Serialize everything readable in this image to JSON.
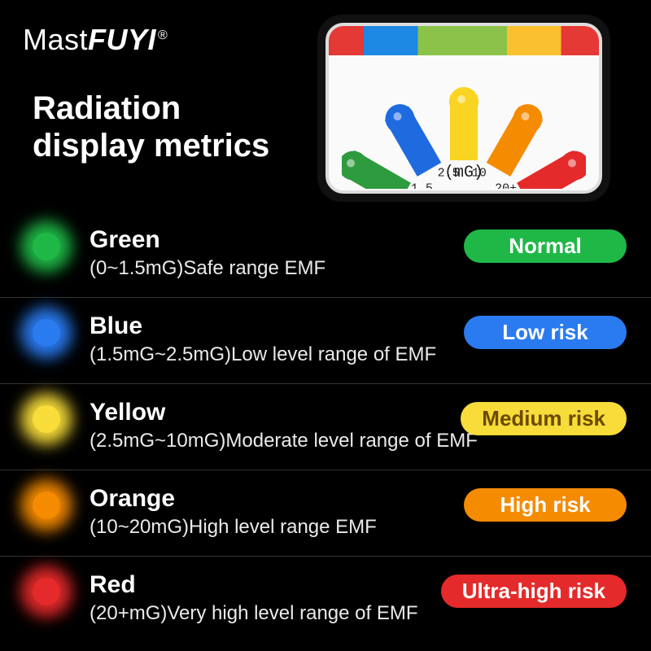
{
  "brand": {
    "part1": "Mast",
    "part2": "FUYI",
    "reg": "®"
  },
  "title_line1": "Radiation",
  "title_line2": "display metrics",
  "meter": {
    "unit": "(mG)",
    "ticks": [
      "1.5",
      "2.5",
      "10",
      "20+"
    ],
    "bars": [
      {
        "color": "#2e9b3f"
      },
      {
        "color": "#1e6be0"
      },
      {
        "color": "#f9d423"
      },
      {
        "color": "#f58b00"
      },
      {
        "color": "#e42a2a"
      }
    ],
    "topbar_colors": [
      "#e53935",
      "#1e88e5",
      "#8bc34a",
      "#fbc02d",
      "#e53935"
    ]
  },
  "levels": [
    {
      "name": "Green",
      "dot_color": "#1fb847",
      "desc": "(0~1.5mG)Safe range EMF",
      "badge": "Normal",
      "badge_bg": "#1fb847",
      "badge_color": "#ffffff"
    },
    {
      "name": "Blue",
      "dot_color": "#2a7bf0",
      "desc": "(1.5mG~2.5mG)Low level range of EMF",
      "badge": "Low risk",
      "badge_bg": "#2a7bf0",
      "badge_color": "#ffffff"
    },
    {
      "name": "Yellow",
      "dot_color": "#f7dc3a",
      "desc": "(2.5mG~10mG)Moderate level range of EMF",
      "badge": "Medium risk",
      "badge_bg": "#f7dc3a",
      "badge_color": "#6b4a00"
    },
    {
      "name": "Orange",
      "dot_color": "#f58b00",
      "desc": "(10~20mG)High level range EMF",
      "badge": "High risk",
      "badge_bg": "#f58b00",
      "badge_color": "#ffffff"
    },
    {
      "name": "Red",
      "dot_color": "#e42a2a",
      "desc": "(20+mG)Very high level range of EMF",
      "badge": "Ultra-high risk",
      "badge_bg": "#e42a2a",
      "badge_color": "#ffffff"
    }
  ]
}
